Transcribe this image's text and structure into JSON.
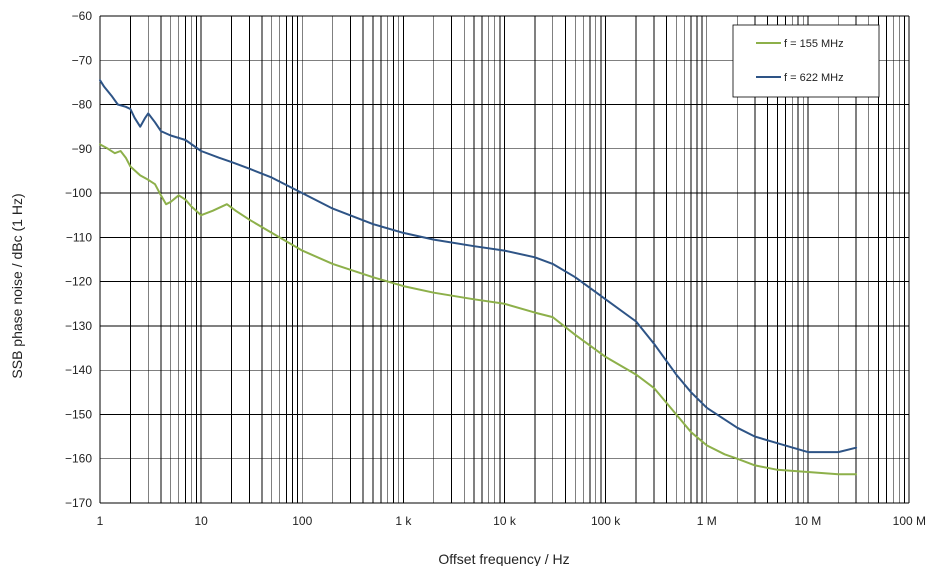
{
  "chart_data": {
    "type": "line",
    "title": "",
    "xlabel": "Offset frequency / Hz",
    "ylabel": "SSB phase noise / dBc (1 Hz)",
    "x_scale": "log",
    "xlim": [
      1,
      100000000
    ],
    "ylim": [
      -170,
      -60
    ],
    "grid": true,
    "legend_position": "top-right",
    "x_ticks": [
      {
        "value": 1,
        "label": "1"
      },
      {
        "value": 10,
        "label": "10"
      },
      {
        "value": 100,
        "label": "100"
      },
      {
        "value": 1000,
        "label": "1 k"
      },
      {
        "value": 10000,
        "label": "10 k"
      },
      {
        "value": 100000,
        "label": "100 k"
      },
      {
        "value": 1000000,
        "label": "1 M"
      },
      {
        "value": 10000000,
        "label": "10 M"
      },
      {
        "value": 100000000,
        "label": "100 M"
      }
    ],
    "y_ticks": [
      {
        "value": -60,
        "label": "−60"
      },
      {
        "value": -70,
        "label": "−70"
      },
      {
        "value": -80,
        "label": "−80"
      },
      {
        "value": -90,
        "label": "−90"
      },
      {
        "value": -100,
        "label": "−100"
      },
      {
        "value": -110,
        "label": "−110"
      },
      {
        "value": -120,
        "label": "−120"
      },
      {
        "value": -130,
        "label": "−130"
      },
      {
        "value": -140,
        "label": "−140"
      },
      {
        "value": -150,
        "label": "−150"
      },
      {
        "value": -160,
        "label": "−160"
      },
      {
        "value": -170,
        "label": "−170"
      }
    ],
    "series": [
      {
        "name": "f = 155 MHz",
        "color": "#8db04a",
        "points": [
          [
            1,
            -89
          ],
          [
            1.2,
            -90
          ],
          [
            1.4,
            -91
          ],
          [
            1.6,
            -90.5
          ],
          [
            1.8,
            -92
          ],
          [
            2,
            -94
          ],
          [
            2.5,
            -96
          ],
          [
            3,
            -97
          ],
          [
            3.5,
            -98
          ],
          [
            4,
            -100.5
          ],
          [
            4.5,
            -102.5
          ],
          [
            5,
            -102
          ],
          [
            6,
            -100.5
          ],
          [
            7,
            -101.5
          ],
          [
            8,
            -103
          ],
          [
            10,
            -105
          ],
          [
            13,
            -104
          ],
          [
            18,
            -102.5
          ],
          [
            22,
            -104
          ],
          [
            30,
            -106
          ],
          [
            50,
            -109
          ],
          [
            100,
            -113
          ],
          [
            200,
            -116
          ],
          [
            500,
            -119
          ],
          [
            1000,
            -121
          ],
          [
            2000,
            -122.5
          ],
          [
            5000,
            -124
          ],
          [
            10000,
            -125
          ],
          [
            20000,
            -127
          ],
          [
            30000,
            -128
          ],
          [
            50000,
            -132
          ],
          [
            100000,
            -137
          ],
          [
            200000,
            -141
          ],
          [
            300000,
            -144
          ],
          [
            500000,
            -150
          ],
          [
            700000,
            -154
          ],
          [
            1000000,
            -157
          ],
          [
            1500000,
            -159
          ],
          [
            2000000,
            -160
          ],
          [
            3000000,
            -161.5
          ],
          [
            5000000,
            -162.5
          ],
          [
            10000000,
            -163
          ],
          [
            20000000,
            -163.5
          ],
          [
            30000000,
            -163.5
          ]
        ]
      },
      {
        "name": "f = 622 MHz",
        "color": "#2e5486",
        "points": [
          [
            1,
            -74.5
          ],
          [
            1.1,
            -76
          ],
          [
            1.3,
            -78
          ],
          [
            1.5,
            -80
          ],
          [
            1.8,
            -80.5
          ],
          [
            2,
            -81
          ],
          [
            2.2,
            -83
          ],
          [
            2.5,
            -85
          ],
          [
            2.8,
            -83
          ],
          [
            3,
            -82
          ],
          [
            3.5,
            -84
          ],
          [
            4,
            -86
          ],
          [
            5,
            -87
          ],
          [
            7,
            -88
          ],
          [
            10,
            -90.5
          ],
          [
            15,
            -92
          ],
          [
            20,
            -93
          ],
          [
            30,
            -94.5
          ],
          [
            50,
            -96.5
          ],
          [
            100,
            -100
          ],
          [
            200,
            -103.5
          ],
          [
            500,
            -107
          ],
          [
            1000,
            -109
          ],
          [
            2000,
            -110.5
          ],
          [
            5000,
            -112
          ],
          [
            10000,
            -113
          ],
          [
            20000,
            -114.5
          ],
          [
            30000,
            -116
          ],
          [
            50000,
            -119
          ],
          [
            100000,
            -124
          ],
          [
            200000,
            -129
          ],
          [
            300000,
            -134
          ],
          [
            500000,
            -141
          ],
          [
            700000,
            -145
          ],
          [
            1000000,
            -148.5
          ],
          [
            2000000,
            -153
          ],
          [
            3000000,
            -155
          ],
          [
            5000000,
            -156.5
          ],
          [
            10000000,
            -158.5
          ],
          [
            20000000,
            -158.5
          ],
          [
            30000000,
            -157.5
          ]
        ]
      }
    ]
  }
}
